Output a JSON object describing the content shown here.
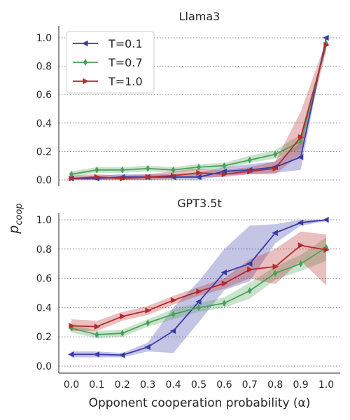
{
  "chart_data": [
    {
      "type": "line",
      "title": "Llama3",
      "ylabel": "",
      "xlabel": "",
      "x": [
        0.0,
        0.1,
        0.2,
        0.3,
        0.4,
        0.5,
        0.6,
        0.7,
        0.8,
        0.9,
        1.0
      ],
      "ylim": [
        -0.05,
        1.08
      ],
      "yticks": [
        "0.0",
        "0.2",
        "0.4",
        "0.6",
        "0.8",
        "1.0"
      ],
      "ytick_values": [
        0.0,
        0.2,
        0.4,
        0.6,
        0.8,
        1.0
      ],
      "grid": "horizontal dotted",
      "legend": "top-left",
      "series": [
        {
          "name": "T=0.1",
          "color": "#3a3aa8",
          "marker": "triangle-left",
          "values": [
            0.01,
            0.01,
            0.02,
            0.02,
            0.02,
            0.02,
            0.06,
            0.07,
            0.09,
            0.16,
            1.0
          ],
          "lower": [
            0.0,
            0.0,
            0.0,
            0.0,
            0.0,
            0.0,
            0.03,
            0.04,
            0.05,
            0.07,
            1.0
          ],
          "upper": [
            0.02,
            0.03,
            0.04,
            0.04,
            0.04,
            0.05,
            0.09,
            0.11,
            0.13,
            0.26,
            1.0
          ]
        },
        {
          "name": "T=0.7",
          "color": "#4ca15a",
          "marker": "diamond",
          "values": [
            0.04,
            0.07,
            0.07,
            0.08,
            0.07,
            0.09,
            0.1,
            0.14,
            0.18,
            0.27,
            0.96
          ],
          "lower": [
            0.02,
            0.05,
            0.05,
            0.06,
            0.05,
            0.07,
            0.08,
            0.12,
            0.15,
            0.22,
            0.93
          ],
          "upper": [
            0.06,
            0.09,
            0.09,
            0.1,
            0.09,
            0.11,
            0.12,
            0.17,
            0.21,
            0.32,
            0.98
          ]
        },
        {
          "name": "T=1.0",
          "color": "#b52a2a",
          "marker": "triangle-right",
          "values": [
            0.01,
            0.02,
            0.01,
            0.02,
            0.03,
            0.05,
            0.04,
            0.06,
            0.08,
            0.3,
            0.95
          ],
          "lower": [
            0.0,
            0.0,
            0.0,
            0.0,
            0.01,
            0.02,
            0.02,
            0.04,
            0.04,
            0.18,
            0.91
          ],
          "upper": [
            0.03,
            0.04,
            0.03,
            0.04,
            0.06,
            0.08,
            0.07,
            0.09,
            0.13,
            0.48,
            0.98
          ]
        }
      ]
    },
    {
      "type": "line",
      "title": "GPT3.5t",
      "ylabel": "",
      "xlabel": "Opponent cooperation probability (α)",
      "x": [
        0.0,
        0.1,
        0.2,
        0.3,
        0.4,
        0.5,
        0.6,
        0.7,
        0.8,
        0.9,
        1.0
      ],
      "xticks": [
        "0.0",
        "0.1",
        "0.2",
        "0.3",
        "0.4",
        "0.5",
        "0.6",
        "0.7",
        "0.8",
        "0.9",
        "1.0"
      ],
      "ylim": [
        -0.05,
        1.05
      ],
      "yticks": [
        "0.0",
        "0.2",
        "0.4",
        "0.6",
        "0.8",
        "1.0"
      ],
      "ytick_values": [
        0.0,
        0.2,
        0.4,
        0.6,
        0.8,
        1.0
      ],
      "grid": "horizontal dotted",
      "series": [
        {
          "name": "T=0.1",
          "color": "#3a3aa8",
          "marker": "triangle-left",
          "values": [
            0.08,
            0.08,
            0.075,
            0.13,
            0.24,
            0.44,
            0.64,
            0.7,
            0.91,
            0.98,
            1.0
          ],
          "lower": [
            0.06,
            0.06,
            0.06,
            0.1,
            0.09,
            0.3,
            0.52,
            0.58,
            0.84,
            0.96,
            0.99
          ],
          "upper": [
            0.1,
            0.1,
            0.09,
            0.16,
            0.4,
            0.58,
            0.8,
            0.96,
            0.97,
            1.0,
            1.0
          ]
        },
        {
          "name": "T=0.7",
          "color": "#4ca15a",
          "marker": "diamond",
          "values": [
            0.26,
            0.215,
            0.225,
            0.295,
            0.355,
            0.4,
            0.43,
            0.515,
            0.635,
            0.7,
            0.81
          ],
          "lower": [
            0.23,
            0.19,
            0.2,
            0.27,
            0.32,
            0.37,
            0.4,
            0.46,
            0.59,
            0.65,
            0.72
          ],
          "upper": [
            0.29,
            0.24,
            0.25,
            0.32,
            0.39,
            0.43,
            0.47,
            0.57,
            0.68,
            0.76,
            0.88
          ]
        },
        {
          "name": "T=1.0",
          "color": "#b52a2a",
          "marker": "triangle-right",
          "values": [
            0.275,
            0.27,
            0.34,
            0.38,
            0.45,
            0.51,
            0.565,
            0.66,
            0.68,
            0.825,
            0.795
          ],
          "lower": [
            0.24,
            0.24,
            0.31,
            0.35,
            0.42,
            0.48,
            0.53,
            0.6,
            0.56,
            0.72,
            0.55
          ],
          "upper": [
            0.32,
            0.31,
            0.37,
            0.41,
            0.48,
            0.54,
            0.6,
            0.73,
            0.8,
            0.92,
            0.9
          ]
        }
      ]
    }
  ],
  "shared_ylabel_main": "p",
  "shared_ylabel_sub": "coop"
}
